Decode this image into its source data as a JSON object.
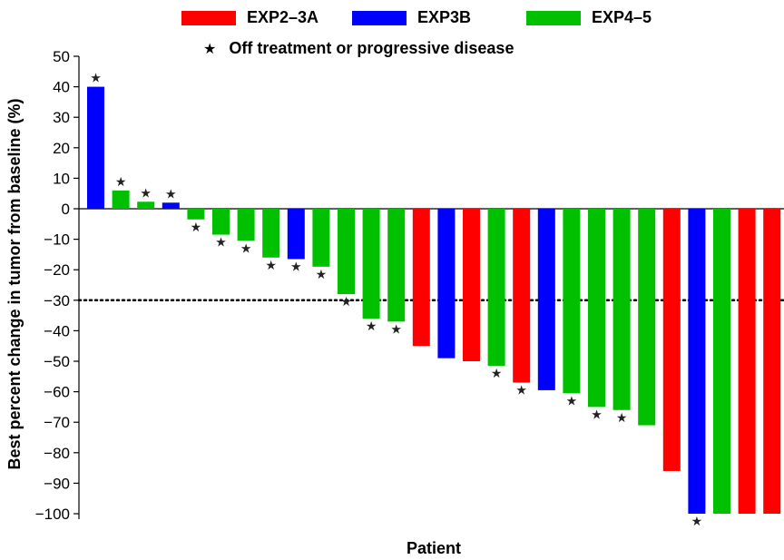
{
  "chart_data": {
    "type": "bar",
    "title": "",
    "xlabel": "Patient",
    "ylabel": "Best percent change in tumor from baseline (%)",
    "ylim": [
      -105,
      50
    ],
    "yticks": [
      50,
      40,
      30,
      20,
      10,
      0,
      -10,
      -20,
      -30,
      -40,
      -50,
      -60,
      -70,
      -80,
      -90,
      -100
    ],
    "ytick_labels": [
      "50",
      "40",
      "30",
      "20",
      "10",
      "0",
      "−10",
      "−20",
      "−30",
      "−40",
      "−50",
      "−60",
      "−70",
      "−80",
      "−90",
      "−100"
    ],
    "reference_line": {
      "value": -30,
      "style": "dotted"
    },
    "legend": {
      "groups": [
        {
          "name": "EXP2–3A",
          "color": "#ff0000"
        },
        {
          "name": "EXP3B",
          "color": "#0000ff"
        },
        {
          "name": "EXP4–5",
          "color": "#00c000"
        }
      ],
      "marker_label": "Off treatment or progressive disease",
      "marker_symbol": "★"
    },
    "bars": [
      {
        "value": 40,
        "group": "EXP3B",
        "star": true
      },
      {
        "value": 6,
        "group": "EXP4–5",
        "star": true
      },
      {
        "value": 2.3,
        "group": "EXP4–5",
        "star": true
      },
      {
        "value": 2,
        "group": "EXP3B",
        "star": true
      },
      {
        "value": -3.5,
        "group": "EXP4–5",
        "star": true
      },
      {
        "value": -8.5,
        "group": "EXP4–5",
        "star": true
      },
      {
        "value": -10.5,
        "group": "EXP4–5",
        "star": true
      },
      {
        "value": -16,
        "group": "EXP4–5",
        "star": true
      },
      {
        "value": -16.5,
        "group": "EXP3B",
        "star": true
      },
      {
        "value": -19,
        "group": "EXP4–5",
        "star": true
      },
      {
        "value": -28,
        "group": "EXP4–5",
        "star": true
      },
      {
        "value": -36,
        "group": "EXP4–5",
        "star": true
      },
      {
        "value": -37,
        "group": "EXP4–5",
        "star": true
      },
      {
        "value": -45,
        "group": "EXP2–3A",
        "star": false
      },
      {
        "value": -49,
        "group": "EXP3B",
        "star": false
      },
      {
        "value": -50,
        "group": "EXP2–3A",
        "star": false
      },
      {
        "value": -51.5,
        "group": "EXP4–5",
        "star": true
      },
      {
        "value": -57,
        "group": "EXP2–3A",
        "star": true
      },
      {
        "value": -59.5,
        "group": "EXP3B",
        "star": false
      },
      {
        "value": -60.5,
        "group": "EXP4–5",
        "star": true
      },
      {
        "value": -65,
        "group": "EXP4–5",
        "star": true
      },
      {
        "value": -66,
        "group": "EXP4–5",
        "star": true
      },
      {
        "value": -71,
        "group": "EXP4–5",
        "star": false
      },
      {
        "value": -86,
        "group": "EXP2–3A",
        "star": false
      },
      {
        "value": -100,
        "group": "EXP3B",
        "star": true
      },
      {
        "value": -100,
        "group": "EXP4–5",
        "star": false
      },
      {
        "value": -100,
        "group": "EXP2–3A",
        "star": false
      },
      {
        "value": -100,
        "group": "EXP2–3A",
        "star": false
      }
    ]
  }
}
